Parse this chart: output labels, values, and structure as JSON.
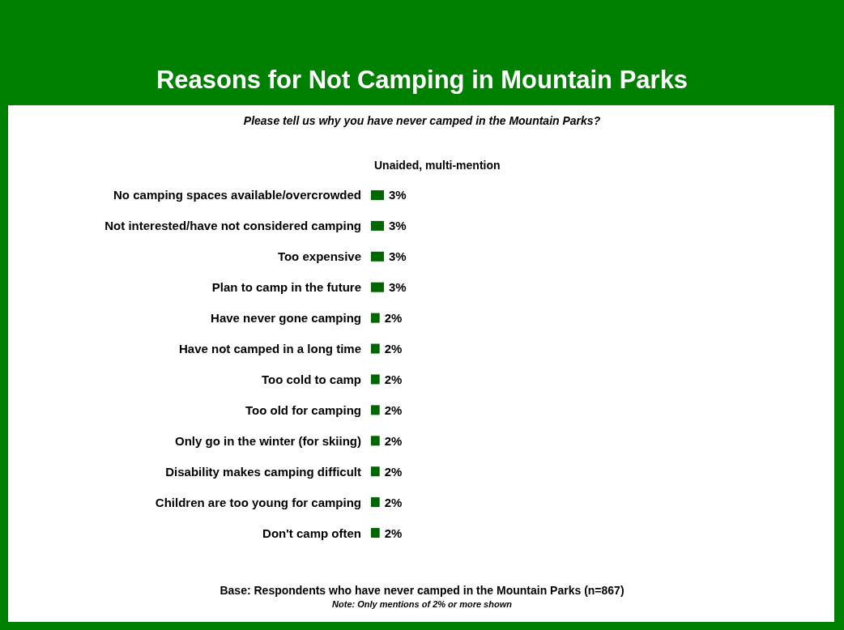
{
  "chart_data": {
    "type": "bar",
    "orientation": "horizontal",
    "title": "Reasons for Not Camping in Mountain Parks",
    "subtitle": "Please tell us why you have never camped in the Mountain Parks?",
    "categories": [
      "No camping spaces available/overcrowded",
      "Not interested/have not considered camping",
      "Too expensive",
      "Plan to camp in the future",
      "Have never gone camping",
      "Have not camped in a long time",
      "Too cold to camp",
      "Too old for camping",
      "Only go in the winter (for skiing)",
      "Disability makes camping difficult",
      "Children are too young for camping",
      "Don't camp often"
    ],
    "values": [
      3,
      3,
      3,
      3,
      2,
      2,
      2,
      2,
      2,
      2,
      2,
      2
    ],
    "value_labels": [
      "3%",
      "3%",
      "3%",
      "3%",
      "2%",
      "2%",
      "2%",
      "2%",
      "2%",
      "2%",
      "2%",
      "2%"
    ],
    "color": "#006600",
    "annotations": [
      "Unaided, multi-mention",
      "Base: Respondents who have never camped in the Mountain Parks (n=867)",
      "Note: Only mentions of 2% or more shown"
    ]
  }
}
